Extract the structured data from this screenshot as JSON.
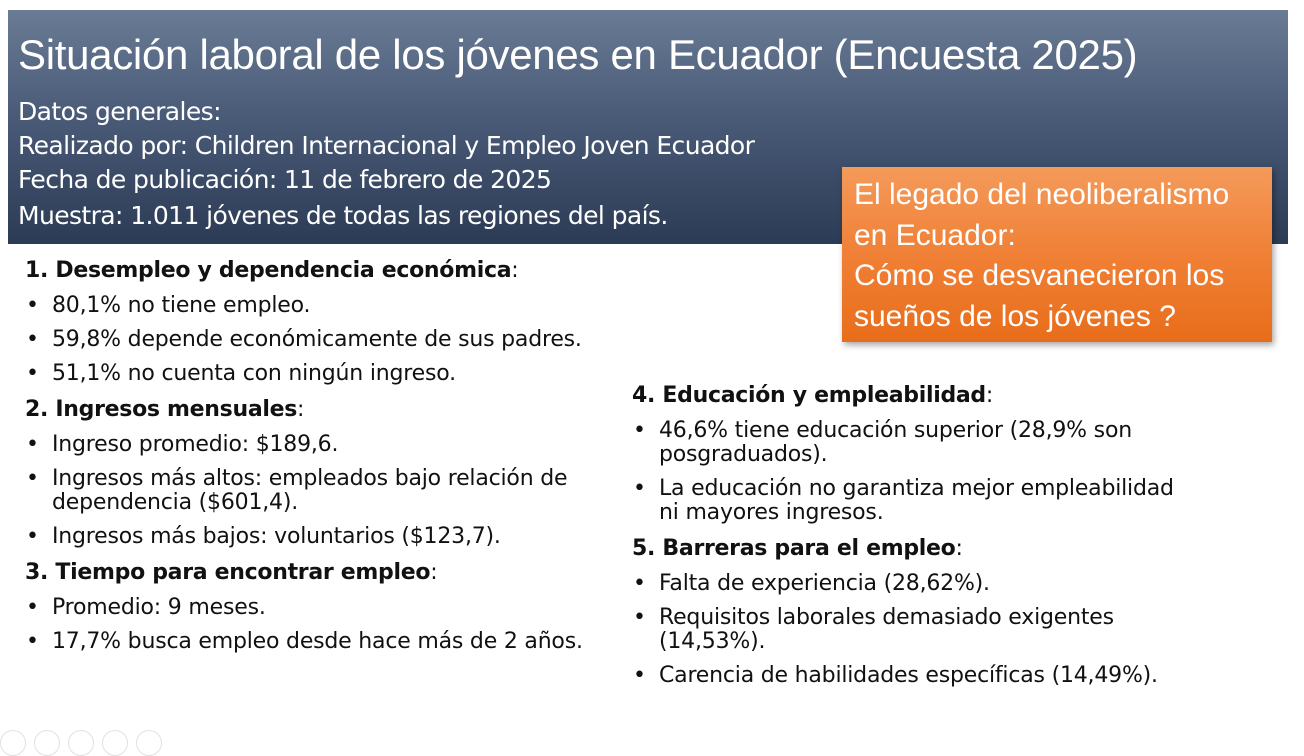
{
  "header": {
    "title": "Situación laboral de los jóvenes en Ecuador (Encuesta 2025)",
    "general": "Datos generales:",
    "by_label": "Realizado por",
    "by_value": ": Children Internacional y Empleo Joven Ecuador",
    "date_label": "Fecha de publicación",
    "date_value": ": 11 de febrero de 2025",
    "sample_label": "Muestra",
    "sample_value": ": 1.011 jóvenes de todas las regiones del país."
  },
  "callout": {
    "lines": [
      "El legado del neoliberalismo",
      "en Ecuador:",
      "Cómo se desvanecieron los",
      "sueños de los jóvenes ?"
    ]
  },
  "sections": {
    "s1": {
      "title": "1. Desempleo y dependencia económica",
      "items": [
        "80,1% no tiene empleo.",
        "59,8% depende económicamente de sus padres.",
        "51,1% no cuenta con ningún ingreso."
      ]
    },
    "s2": {
      "title": "2. Ingresos mensuales",
      "items": [
        "Ingreso promedio: $189,6.",
        "Ingresos más altos: empleados bajo relación de dependencia ($601,4).",
        "Ingresos más bajos: voluntarios ($123,7)."
      ]
    },
    "s3": {
      "title": "3. Tiempo para encontrar empleo",
      "items": [
        "Promedio: 9 meses.",
        "17,7% busca empleo desde hace más de 2 años."
      ]
    },
    "s4": {
      "title": "4. Educación y empleabilidad",
      "items": [
        "46,6% tiene educación superior (28,9% son posgraduados).",
        "La educación no garantiza mejor empleabilidad ni mayores ingresos."
      ]
    },
    "s5": {
      "title": "5. Barreras para el empleo",
      "items": [
        "Falta de experiencia (28,62%).",
        "Requisitos laborales demasiado exigentes (14,53%).",
        "Carencia de habilidades específicas (14,49%)."
      ]
    }
  },
  "colon": ":"
}
